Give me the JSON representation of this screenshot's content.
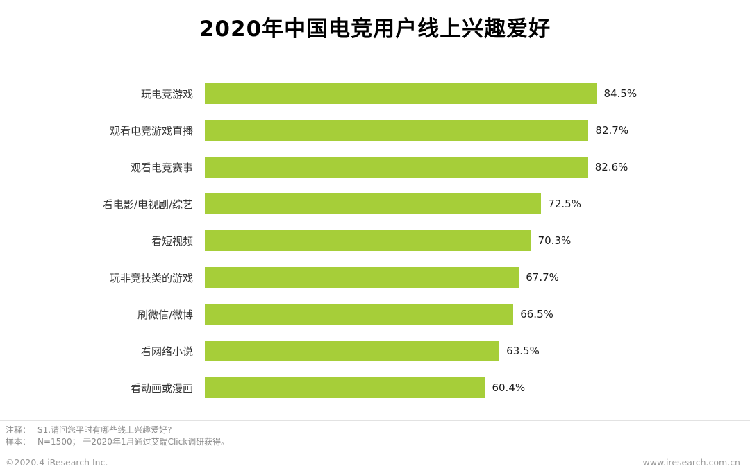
{
  "title": "2020年中国电竞用户线上兴趣爱好",
  "chart_data": {
    "type": "bar",
    "orientation": "horizontal",
    "title": "2020年中国电竞用户线上兴趣爱好",
    "categories": [
      "玩电竞游戏",
      "观看电竞游戏直播",
      "观看电竞赛事",
      "看电影/电视剧/综艺",
      "看短视频",
      "玩非竞技类的游戏",
      "刷微信/微博",
      "看网络小说",
      "看动画或漫画"
    ],
    "values": [
      84.5,
      82.7,
      82.6,
      72.5,
      70.3,
      67.7,
      66.5,
      63.5,
      60.4
    ],
    "value_suffix": "%",
    "xlim": [
      0,
      100
    ],
    "grid": false,
    "legend": false,
    "bar_color": "#A6CE39"
  },
  "notes": {
    "line1": {
      "label": "注释：",
      "text": "S1.请问您平时有哪些线上兴趣爱好?"
    },
    "line2": {
      "label": "样本：",
      "text": "N=1500； 于2020年1月通过艾瑞Click调研获得。"
    }
  },
  "footer": {
    "copyright": "©2020.4 iResearch Inc.",
    "website": "www.iresearch.com.cn"
  }
}
